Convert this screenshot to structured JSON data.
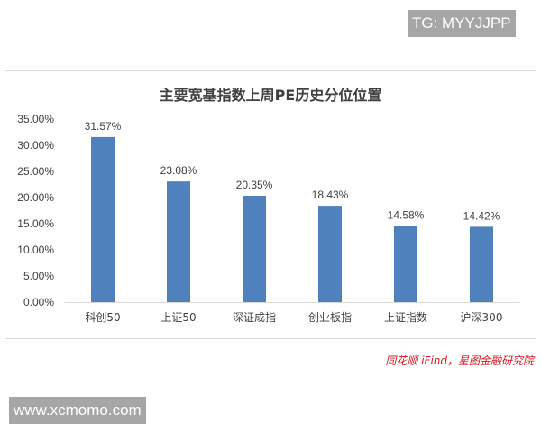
{
  "watermarks": {
    "top": "TG: MYYJJPP",
    "bottom": "www.xcmomo.com"
  },
  "source": "同花顺 iFind，星图金融研究院",
  "chart_data": {
    "type": "bar",
    "title": "主要宽基指数上周PE历史分位位置",
    "categories": [
      "科创50",
      "上证50",
      "深证成指",
      "创业板指",
      "上证指数",
      "沪深300"
    ],
    "values": [
      31.57,
      23.08,
      20.35,
      18.43,
      14.58,
      14.42
    ],
    "data_labels": [
      "31.57%",
      "23.08%",
      "20.35%",
      "18.43%",
      "14.58%",
      "14.42%"
    ],
    "ylim": [
      0,
      35
    ],
    "yticks": [
      "0.00%",
      "5.00%",
      "10.00%",
      "15.00%",
      "20.00%",
      "25.00%",
      "30.00%",
      "35.00%"
    ],
    "grid": false,
    "bar_color": "#4f81bd"
  }
}
